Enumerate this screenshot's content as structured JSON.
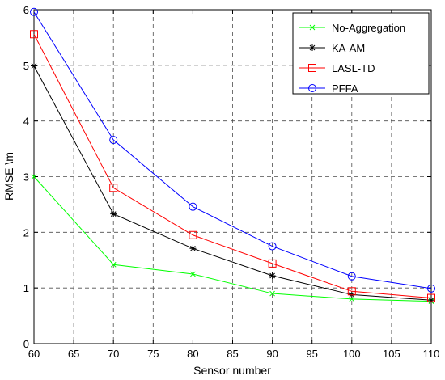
{
  "chart_data": {
    "type": "line",
    "title": "",
    "xlabel": "Sensor number",
    "ylabel": "RMSE \\m",
    "xlim": [
      60,
      110
    ],
    "ylim": [
      0,
      6
    ],
    "xticks": [
      60,
      65,
      70,
      75,
      80,
      85,
      90,
      95,
      100,
      105,
      110
    ],
    "yticks": [
      0,
      1,
      2,
      3,
      4,
      5,
      6
    ],
    "grid": true,
    "legend_position": "top-right",
    "x": [
      60,
      70,
      80,
      90,
      100,
      110
    ],
    "series": [
      {
        "name": "No-Aggregation",
        "color": "#00ff00",
        "marker": "x",
        "values": [
          3.0,
          1.42,
          1.25,
          0.9,
          0.8,
          0.76
        ]
      },
      {
        "name": "KA-AM",
        "color": "#000000",
        "marker": "star",
        "values": [
          4.99,
          2.33,
          1.71,
          1.22,
          0.88,
          0.78
        ]
      },
      {
        "name": "LASL-TD",
        "color": "#ff0000",
        "marker": "square",
        "values": [
          5.56,
          2.8,
          1.95,
          1.44,
          0.94,
          0.82
        ]
      },
      {
        "name": "PFFA",
        "color": "#0000ff",
        "marker": "circle",
        "values": [
          5.96,
          3.66,
          2.46,
          1.75,
          1.21,
          0.99
        ]
      }
    ]
  }
}
